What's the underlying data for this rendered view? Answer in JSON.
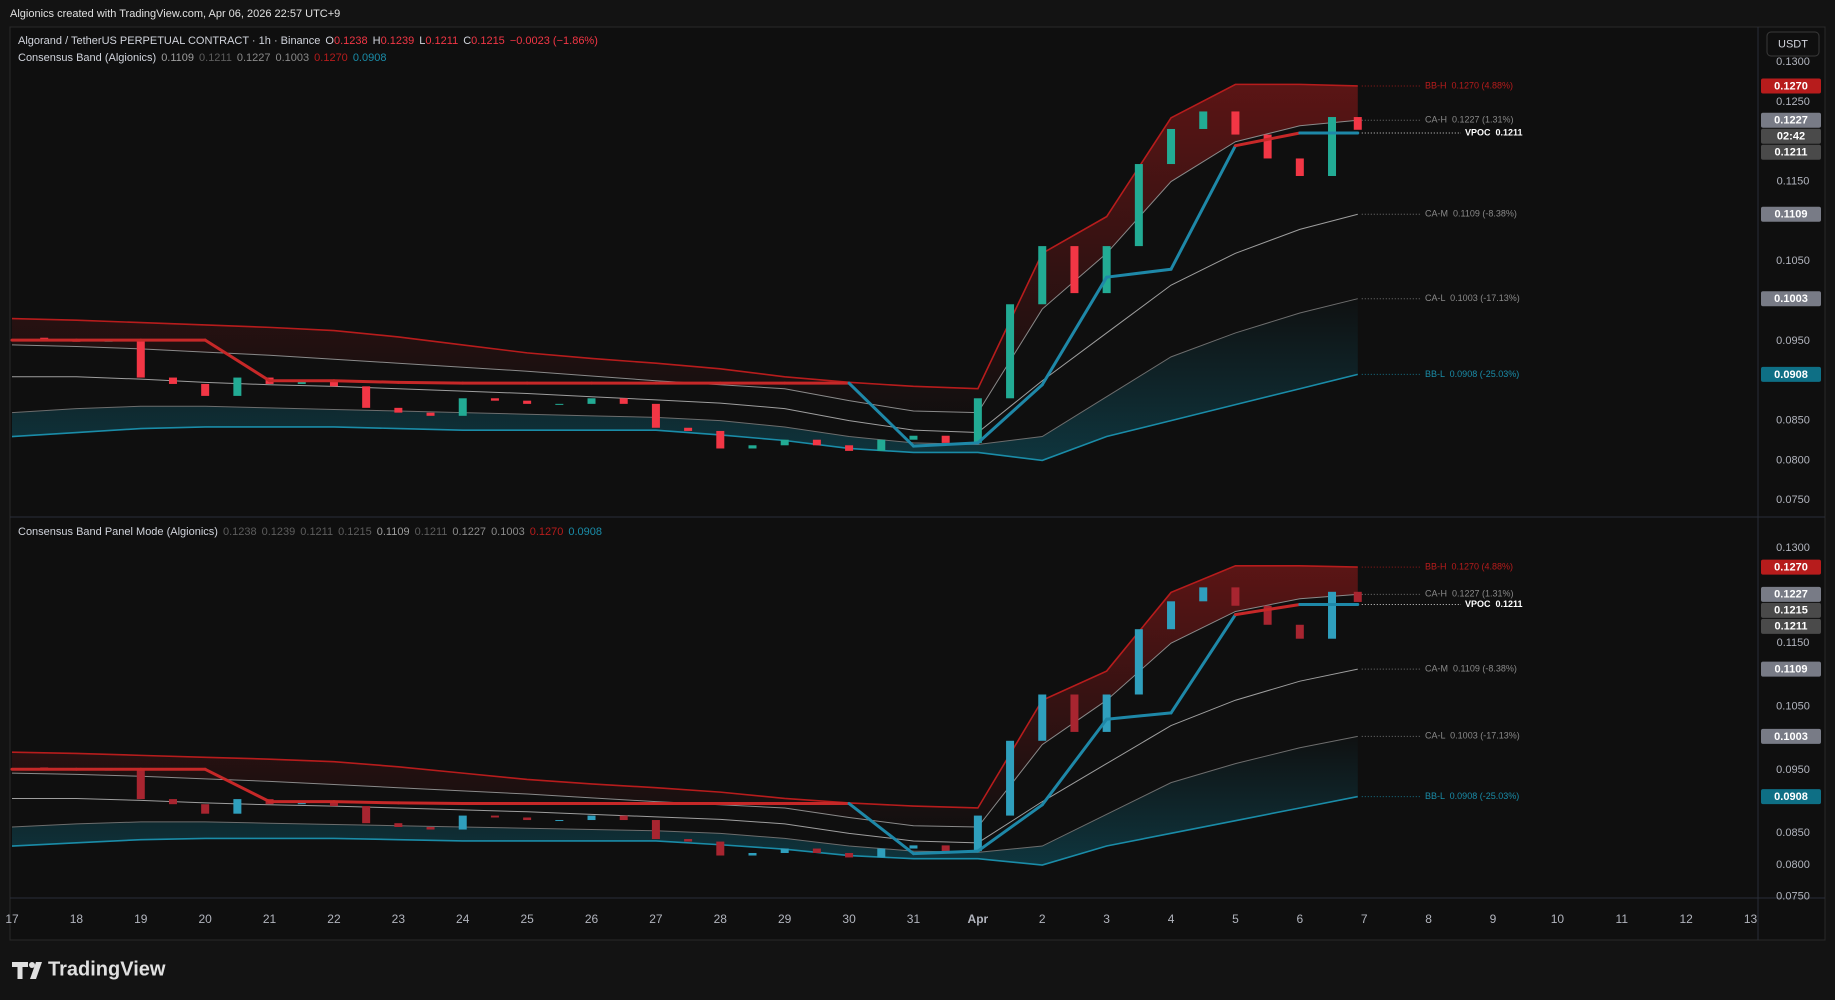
{
  "header": {
    "title": "Algionics created with TradingView.com, Apr 06, 2026 22:57 UTC+9"
  },
  "footer": {
    "brand": "TradingView"
  },
  "chart_data": {
    "type": "candlestick",
    "currency": "USDT",
    "xlim": [
      0,
      27.1
    ],
    "xticks": [
      {
        "value": 0,
        "label": "17"
      },
      {
        "value": 1,
        "label": "18"
      },
      {
        "value": 2,
        "label": "19"
      },
      {
        "value": 3,
        "label": "20"
      },
      {
        "value": 4,
        "label": "21"
      },
      {
        "value": 5,
        "label": "22"
      },
      {
        "value": 6,
        "label": "23"
      },
      {
        "value": 7,
        "label": "24"
      },
      {
        "value": 8,
        "label": "25"
      },
      {
        "value": 9,
        "label": "26"
      },
      {
        "value": 10,
        "label": "27"
      },
      {
        "value": 11,
        "label": "28"
      },
      {
        "value": 12,
        "label": "29"
      },
      {
        "value": 13,
        "label": "30"
      },
      {
        "value": 14,
        "label": "31"
      },
      {
        "value": 15,
        "label": "Apr"
      },
      {
        "value": 16,
        "label": "2"
      },
      {
        "value": 17,
        "label": "3"
      },
      {
        "value": 18,
        "label": "4"
      },
      {
        "value": 19,
        "label": "5"
      },
      {
        "value": 20,
        "label": "6"
      },
      {
        "value": 21,
        "label": "7"
      },
      {
        "value": 22,
        "label": "8"
      },
      {
        "value": 23,
        "label": "9"
      },
      {
        "value": 24,
        "label": "10"
      },
      {
        "value": 25,
        "label": "11"
      },
      {
        "value": 26,
        "label": "12"
      },
      {
        "value": 27,
        "label": "13"
      }
    ],
    "close_x": [
      0,
      0.5,
      1,
      1.5,
      2,
      2.5,
      3,
      3.5,
      4,
      4.5,
      5,
      5.5,
      6,
      6.5,
      7,
      7.5,
      8,
      8.5,
      9,
      9.5,
      10,
      10.5,
      11,
      11.5,
      12,
      12.5,
      13,
      13.5,
      14,
      14.5,
      15,
      15.5,
      16,
      16.5,
      17,
      17.5,
      18,
      18.5,
      19,
      19.5,
      20,
      20.5,
      20.9
    ],
    "close": [
      0.0954,
      0.0951,
      0.0949,
      0.0951,
      0.0904,
      0.0896,
      0.0881,
      0.0904,
      0.0896,
      0.09,
      0.0893,
      0.0866,
      0.086,
      0.0856,
      0.0878,
      0.0875,
      0.0871,
      0.0871,
      0.0878,
      0.0871,
      0.0841,
      0.0837,
      0.0815,
      0.0819,
      0.0826,
      0.0819,
      0.0812,
      0.0826,
      0.0831,
      0.0822,
      0.0878,
      0.0996,
      0.1069,
      0.101,
      0.1069,
      0.1172,
      0.1216,
      0.1238,
      0.1209,
      0.1179,
      0.1157,
      0.1231,
      0.1215
    ],
    "band_x": [
      0,
      1,
      2,
      3,
      4,
      5,
      6,
      7,
      8,
      9,
      10,
      11,
      12,
      13,
      14,
      15,
      16,
      17,
      18,
      19,
      20,
      20.9
    ],
    "series": [
      {
        "name": "BB-H",
        "color": "#b71c1c",
        "values": [
          0.0978,
          0.0976,
          0.0973,
          0.097,
          0.0967,
          0.0963,
          0.0955,
          0.0945,
          0.0935,
          0.0928,
          0.0922,
          0.0915,
          0.0905,
          0.0898,
          0.0893,
          0.089,
          0.106,
          0.1106,
          0.123,
          0.1272,
          0.1272,
          0.127
        ]
      },
      {
        "name": "CA-H",
        "color": "#8a8a8a",
        "values": [
          0.0945,
          0.0943,
          0.094,
          0.0936,
          0.0932,
          0.0927,
          0.0922,
          0.0917,
          0.0912,
          0.0906,
          0.09,
          0.0895,
          0.089,
          0.0875,
          0.0862,
          0.086,
          0.099,
          0.106,
          0.115,
          0.12,
          0.122,
          0.1227
        ]
      },
      {
        "name": "CA-M",
        "color": "#9e9e9e",
        "values": [
          0.0905,
          0.0905,
          0.0902,
          0.0898,
          0.0895,
          0.0893,
          0.089,
          0.0887,
          0.0884,
          0.088,
          0.0876,
          0.0872,
          0.0865,
          0.085,
          0.0838,
          0.0835,
          0.09,
          0.096,
          0.102,
          0.106,
          0.109,
          0.1109
        ]
      },
      {
        "name": "CA-L",
        "color": "#6d6d6d",
        "values": [
          0.086,
          0.0865,
          0.0868,
          0.0868,
          0.0866,
          0.0864,
          0.0862,
          0.086,
          0.0858,
          0.0856,
          0.0854,
          0.085,
          0.0842,
          0.083,
          0.0822,
          0.082,
          0.083,
          0.088,
          0.093,
          0.096,
          0.0985,
          0.1003
        ]
      },
      {
        "name": "BB-L",
        "color": "#1a8ca8",
        "values": [
          0.083,
          0.0835,
          0.084,
          0.0842,
          0.0842,
          0.0842,
          0.084,
          0.0838,
          0.0838,
          0.0838,
          0.0838,
          0.0832,
          0.0825,
          0.0815,
          0.081,
          0.081,
          0.08,
          0.083,
          0.085,
          0.087,
          0.089,
          0.0908
        ]
      },
      {
        "name": "VPOC",
        "color": "#1e88a8",
        "color_above": "#c62828",
        "values": [
          0.0951,
          0.0951,
          0.0951,
          0.0951,
          0.09,
          0.09,
          0.0898,
          0.0897,
          0.0897,
          0.0897,
          0.0897,
          0.0897,
          0.0897,
          0.0897,
          0.0818,
          0.0822,
          0.0895,
          0.103,
          0.104,
          0.1195,
          0.1211,
          0.1211
        ]
      }
    ],
    "annotations": [
      {
        "text": "BB-H  0.1270 (4.88%)",
        "value": 0.127,
        "color": "#b71c1c"
      },
      {
        "text": "CA-H  0.1227 (1.31%)",
        "value": 0.1227,
        "color": "#8a8a8a"
      },
      {
        "text": "VPOC  0.1211",
        "value": 0.1211,
        "color": "#ffffff",
        "bold": true
      },
      {
        "text": "CA-M  0.1109 (-8.38%)",
        "value": 0.1109,
        "color": "#8a8a8a"
      },
      {
        "text": "CA-L  0.1003 (-17.13%)",
        "value": 0.1003,
        "color": "#8a8a8a"
      },
      {
        "text": "BB-L  0.0908 (-25.03%)",
        "value": 0.0908,
        "color": "#1a8ca8"
      }
    ],
    "panes": [
      {
        "ylim": [
          0.0729,
          0.1344
        ],
        "up_color": "#22ab94",
        "down_color": "#f23645",
        "yticks": [
          {
            "value": 0.13,
            "label": "0.1300"
          },
          {
            "value": 0.125,
            "label": "0.1250"
          },
          {
            "value": 0.115,
            "label": "0.1150"
          },
          {
            "value": 0.105,
            "label": "0.1050"
          },
          {
            "value": 0.095,
            "label": "0.0950"
          },
          {
            "value": 0.085,
            "label": "0.0850"
          },
          {
            "value": 0.08,
            "label": "0.0800"
          },
          {
            "value": 0.075,
            "label": "0.0750"
          }
        ],
        "legend": [
          {
            "text": "Algorand / TetherUS PERPETUAL CONTRACT · 1h · Binance",
            "color": "#d1d4dc"
          },
          {
            "text": "O",
            "color": "#d1d4dc"
          },
          {
            "text": "0.1238",
            "color": "#f23645"
          },
          {
            "text": "H",
            "color": "#d1d4dc"
          },
          {
            "text": "0.1239",
            "color": "#f23645"
          },
          {
            "text": "L",
            "color": "#d1d4dc"
          },
          {
            "text": "0.1211",
            "color": "#f23645"
          },
          {
            "text": "C",
            "color": "#d1d4dc"
          },
          {
            "text": "0.1215",
            "color": "#f23645"
          },
          {
            "text": "−0.0023 (−1.86%)",
            "color": "#f23645"
          }
        ],
        "indicator": [
          {
            "text": "Consensus Band (Algionics)",
            "color": "#d1d4dc"
          },
          {
            "text": "0.1109",
            "color": "#9e9e9e"
          },
          {
            "text": "0.1211",
            "color": "#5d5d5d"
          },
          {
            "text": "0.1227",
            "color": "#8a8a8a"
          },
          {
            "text": "0.1003",
            "color": "#8a8a8a"
          },
          {
            "text": "0.1270",
            "color": "#b71c1c"
          },
          {
            "text": "0.0908",
            "color": "#1a8ca8"
          }
        ],
        "price_labels": [
          {
            "value": 0.127,
            "label": "0.1270",
            "bg": "#b71c1c"
          },
          {
            "value": 0.1227,
            "label": "0.1227",
            "bg": "#787b86"
          },
          {
            "label": "02:42",
            "bg": "#4a4a4a"
          },
          {
            "value": 0.1211,
            "label": "0.1211",
            "bg": "#4a4a4a"
          },
          {
            "value": 0.1109,
            "label": "0.1109",
            "bg": "#787b86"
          },
          {
            "value": 0.1003,
            "label": "0.1003",
            "bg": "#787b86"
          },
          {
            "value": 0.0908,
            "label": "0.0908",
            "bg": "#0e6f85"
          }
        ]
      },
      {
        "ylim": [
          0.0748,
          0.1349
        ],
        "up_color": "#2f9fbd",
        "down_color": "#a82530",
        "yticks": [
          {
            "value": 0.13,
            "label": "0.1300"
          },
          {
            "value": 0.115,
            "label": "0.1150"
          },
          {
            "value": 0.105,
            "label": "0.1050"
          },
          {
            "value": 0.095,
            "label": "0.0950"
          },
          {
            "value": 0.085,
            "label": "0.0850"
          },
          {
            "value": 0.08,
            "label": "0.0800"
          },
          {
            "value": 0.075,
            "label": "0.0750"
          }
        ],
        "indicator": [
          {
            "text": "Consensus Band Panel Mode (Algionics)",
            "color": "#d1d4dc"
          },
          {
            "text": "0.1238",
            "color": "#5d5d5d"
          },
          {
            "text": "0.1239",
            "color": "#5d5d5d"
          },
          {
            "text": "0.1211",
            "color": "#5d5d5d"
          },
          {
            "text": "0.1215",
            "color": "#5d5d5d"
          },
          {
            "text": "0.1109",
            "color": "#9e9e9e"
          },
          {
            "text": "0.1211",
            "color": "#5d5d5d"
          },
          {
            "text": "0.1227",
            "color": "#8a8a8a"
          },
          {
            "text": "0.1003",
            "color": "#8a8a8a"
          },
          {
            "text": "0.1270",
            "color": "#b71c1c"
          },
          {
            "text": "0.0908",
            "color": "#1a8ca8"
          }
        ],
        "price_labels": [
          {
            "value": 0.127,
            "label": "0.1270",
            "bg": "#b71c1c"
          },
          {
            "value": 0.1227,
            "label": "0.1227",
            "bg": "#787b86"
          },
          {
            "value": 0.1215,
            "label": "0.1215",
            "bg": "#4a4a4a"
          },
          {
            "value": 0.1211,
            "label": "0.1211",
            "bg": "#4a4a4a"
          },
          {
            "value": 0.1109,
            "label": "0.1109",
            "bg": "#787b86"
          },
          {
            "value": 0.1003,
            "label": "0.1003",
            "bg": "#787b86"
          },
          {
            "value": 0.0908,
            "label": "0.0908",
            "bg": "#0e6f85"
          }
        ]
      }
    ]
  }
}
